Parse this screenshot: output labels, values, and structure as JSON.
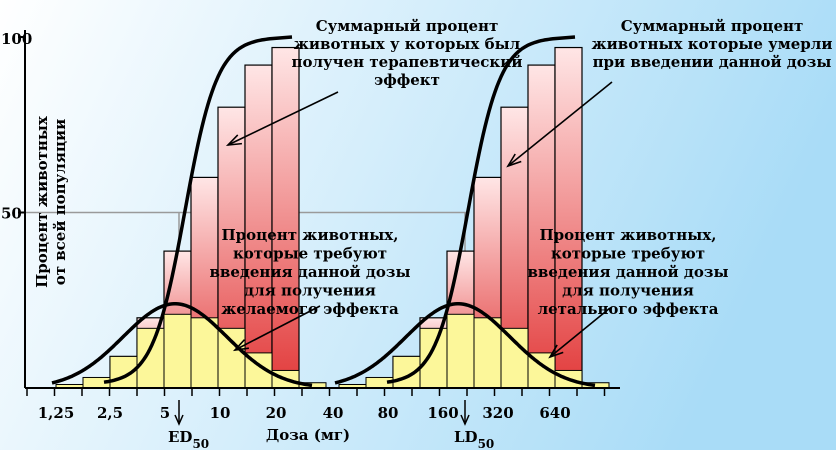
{
  "chart_data": {
    "type": "bar",
    "ylabel": [
      "Процент животных",
      "от всей популяции"
    ],
    "xlabel": "Доза (мг)",
    "y_ticks": [
      "100",
      "50"
    ],
    "x_ticks": [
      "1,25",
      "2,5",
      "5",
      "10",
      "20",
      "40",
      "80",
      "160",
      "320",
      "640"
    ],
    "markers": [
      {
        "label": "ED",
        "sub": "50"
      },
      {
        "label": "LD",
        "sub": "50"
      }
    ],
    "ylim": [
      0,
      100
    ],
    "reference_level": 50,
    "colors": {
      "background_start": "#ffffff",
      "background_end": "#a9dcf7",
      "cumulative_top": "#ffe6e6",
      "cumulative_bottom": "#e23b3b",
      "frequency_fill": "#fcf79a",
      "curve": "#000000",
      "reference_line": "#9a9a9a"
    },
    "panels": [
      {
        "name": "therapeutic",
        "cumulative_percent": [
          1,
          9,
          20,
          39,
          60,
          80,
          92,
          97
        ],
        "frequency_percent": [
          1,
          3,
          9,
          17,
          21,
          20,
          17,
          10,
          5,
          1.5
        ],
        "annotation_cumulative": [
          "Суммарный процент",
          "животных у которых был",
          "получен терапевтический",
          "эффект"
        ],
        "annotation_frequency": [
          "Процент животных,",
          "которые требуют",
          "введения данной дозы",
          "для получения",
          "желаемого эффекта"
        ]
      },
      {
        "name": "lethal",
        "cumulative_percent": [
          1,
          9,
          20,
          39,
          60,
          80,
          92,
          97
        ],
        "frequency_percent": [
          1,
          3,
          9,
          17,
          21,
          20,
          17,
          10,
          5,
          1.5
        ],
        "annotation_cumulative": [
          "Суммарный процент",
          "животных  которые умерли",
          "при введении данной  дозы"
        ],
        "annotation_frequency": [
          "Процент животных,",
          "которые требуют",
          "введения данной дозы",
          "для получения",
          "летального  эффекта"
        ]
      }
    ]
  }
}
